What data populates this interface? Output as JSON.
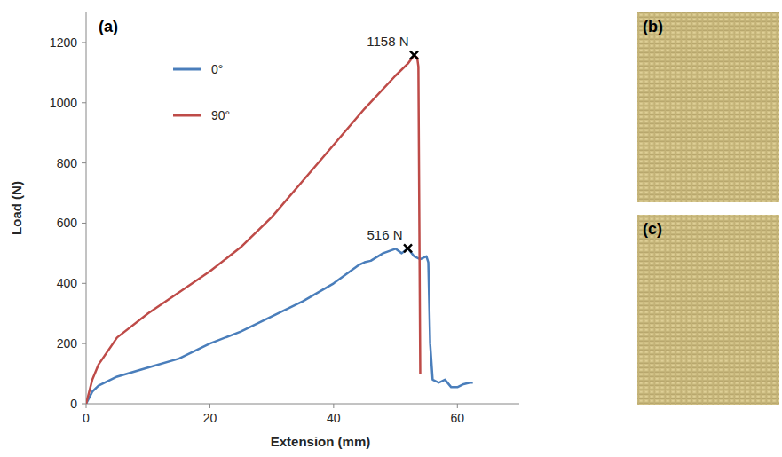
{
  "chart_data": {
    "type": "line",
    "panel_label": "(a)",
    "x_label": "Extension (mm)",
    "y_label": "Load (N)",
    "xlim": [
      0,
      70
    ],
    "xticks": [
      0,
      20,
      40,
      60
    ],
    "ylim": [
      0,
      1300
    ],
    "yticks": [
      0,
      200,
      400,
      600,
      800,
      1000,
      1200
    ],
    "grid": false,
    "legend": "top-left",
    "series": [
      {
        "name": "0°",
        "color": "#4a7ebb",
        "x": [
          0,
          1,
          2,
          5,
          10,
          15,
          20,
          25,
          30,
          35,
          40,
          44,
          45,
          46,
          48,
          50,
          51,
          52,
          53,
          54,
          55,
          55.3,
          55.6,
          56,
          57,
          58,
          59,
          60,
          61,
          62,
          62.5
        ],
        "values": [
          0,
          40,
          60,
          90,
          120,
          150,
          200,
          240,
          290,
          340,
          400,
          460,
          470,
          475,
          500,
          515,
          500,
          516,
          490,
          480,
          490,
          470,
          200,
          80,
          70,
          80,
          55,
          55,
          65,
          70,
          70
        ]
      },
      {
        "name": "90°",
        "color": "#be4b48",
        "x": [
          0,
          1,
          2,
          5,
          10,
          15,
          20,
          25,
          30,
          35,
          40,
          45,
          50,
          52,
          53,
          53.5,
          53.7,
          54
        ],
        "values": [
          0,
          80,
          130,
          220,
          300,
          370,
          440,
          520,
          620,
          740,
          860,
          980,
          1090,
          1130,
          1158,
          1150,
          1120,
          100
        ]
      }
    ],
    "annotations": [
      {
        "text": "1158 N",
        "x": 53,
        "y": 1158
      },
      {
        "text": "516 N",
        "x": 52,
        "y": 516
      }
    ]
  },
  "photos": [
    {
      "label": "(b)"
    },
    {
      "label": "(c)"
    }
  ]
}
